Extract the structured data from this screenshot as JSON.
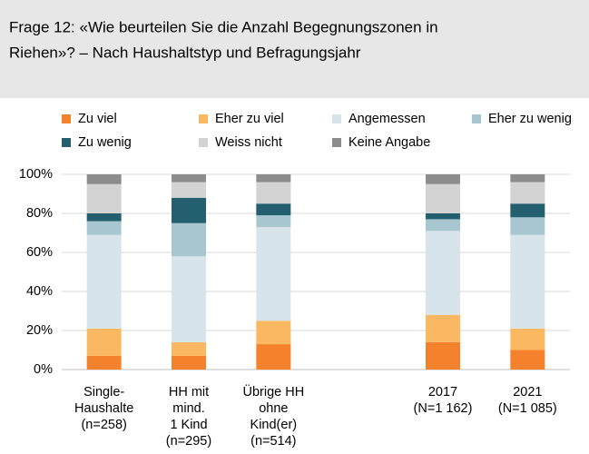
{
  "chart_data": {
    "type": "stacked-bar",
    "title": [
      "Frage 12: «Wie beurteilen Sie die Anzahl Begegnungszonen in",
      "Riehen»? – Nach Haushaltstyp und Befragungsjahr"
    ],
    "categories": [
      [
        "Single-",
        "Haushalte",
        "(n=258)"
      ],
      [
        "HH mit",
        "mind.",
        "1 Kind",
        "(n=295)"
      ],
      [
        "Übrige HH",
        "ohne",
        "Kind(er)",
        "(n=514)"
      ],
      null,
      [
        "2017",
        "(N=1 162)"
      ],
      [
        "2021",
        "(N=1 085)"
      ]
    ],
    "series": [
      {
        "name": "Zu viel",
        "color": "#f4812b",
        "values": [
          7,
          7,
          13,
          null,
          14,
          10
        ]
      },
      {
        "name": "Eher zu viel",
        "color": "#fbb862",
        "values": [
          14,
          7,
          12,
          null,
          14,
          11
        ]
      },
      {
        "name": "Angemessen",
        "color": "#d7e5eb",
        "values": [
          48,
          44,
          48,
          null,
          43,
          48
        ]
      },
      {
        "name": "Eher zu wenig",
        "color": "#a8c6d0",
        "values": [
          7,
          17,
          6,
          null,
          6,
          9
        ]
      },
      {
        "name": "Zu wenig",
        "color": "#245f6f",
        "values": [
          4,
          13,
          6,
          null,
          3,
          7
        ]
      },
      {
        "name": "Weiss nicht",
        "color": "#d3d3d3",
        "values": [
          15,
          8,
          11,
          null,
          15,
          11
        ]
      },
      {
        "name": "Keine Angabe",
        "color": "#8c8c8c",
        "values": [
          5,
          4,
          4,
          null,
          5,
          4
        ]
      }
    ],
    "ylim": [
      0,
      100
    ],
    "yticks": [
      {
        "value": 0,
        "label": "0%"
      },
      {
        "value": 20,
        "label": "20%"
      },
      {
        "value": 40,
        "label": "40%"
      },
      {
        "value": 60,
        "label": "60%"
      },
      {
        "value": 80,
        "label": "80%"
      },
      {
        "value": 100,
        "label": "100%"
      }
    ],
    "grid": true,
    "legend": "top"
  }
}
